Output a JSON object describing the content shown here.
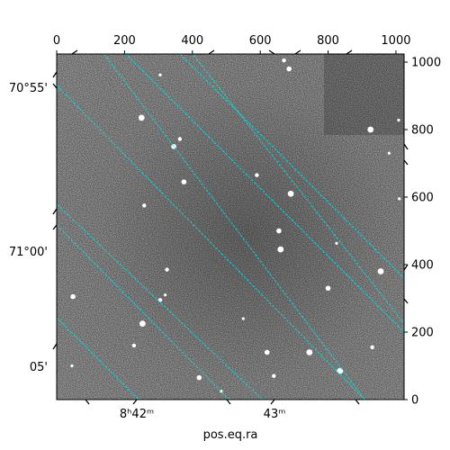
{
  "chart_data": {
    "type": "image",
    "xlabel": "pos.eq.ra",
    "ylabel": "",
    "pixel_axis_top": {
      "ticks": [
        0,
        200,
        400,
        600,
        800,
        1000
      ],
      "range": [
        0,
        1024
      ]
    },
    "pixel_axis_right": {
      "ticks": [
        0,
        200,
        400,
        600,
        800,
        1000
      ],
      "range": [
        0,
        1024
      ]
    },
    "ra_ticks_bottom": [
      "8ʰ42ᵐ",
      "43ᵐ"
    ],
    "dec_ticks_left": [
      "70°55'",
      "71°00'",
      "05'"
    ],
    "grid": true,
    "grid_color": "#00e5e5",
    "image_colormap": "gray",
    "bright_sources": [
      {
        "x": 305,
        "y": 962
      },
      {
        "x": 670,
        "y": 1005
      },
      {
        "x": 685,
        "y": 980
      },
      {
        "x": 250,
        "y": 835
      },
      {
        "x": 1008,
        "y": 828
      },
      {
        "x": 363,
        "y": 772
      },
      {
        "x": 345,
        "y": 750
      },
      {
        "x": 925,
        "y": 800
      },
      {
        "x": 980,
        "y": 730
      },
      {
        "x": 590,
        "y": 665
      },
      {
        "x": 375,
        "y": 645
      },
      {
        "x": 690,
        "y": 610
      },
      {
        "x": 1010,
        "y": 595
      },
      {
        "x": 258,
        "y": 575
      },
      {
        "x": 655,
        "y": 500
      },
      {
        "x": 660,
        "y": 445
      },
      {
        "x": 825,
        "y": 463
      },
      {
        "x": 325,
        "y": 385
      },
      {
        "x": 800,
        "y": 330
      },
      {
        "x": 955,
        "y": 380
      },
      {
        "x": 320,
        "y": 310
      },
      {
        "x": 305,
        "y": 295
      },
      {
        "x": 48,
        "y": 305
      },
      {
        "x": 253,
        "y": 225
      },
      {
        "x": 550,
        "y": 240
      },
      {
        "x": 228,
        "y": 160
      },
      {
        "x": 620,
        "y": 140
      },
      {
        "x": 745,
        "y": 140
      },
      {
        "x": 45,
        "y": 100
      },
      {
        "x": 640,
        "y": 70
      },
      {
        "x": 420,
        "y": 65
      },
      {
        "x": 835,
        "y": 85
      },
      {
        "x": 485,
        "y": 25
      },
      {
        "x": 930,
        "y": 155
      }
    ]
  }
}
